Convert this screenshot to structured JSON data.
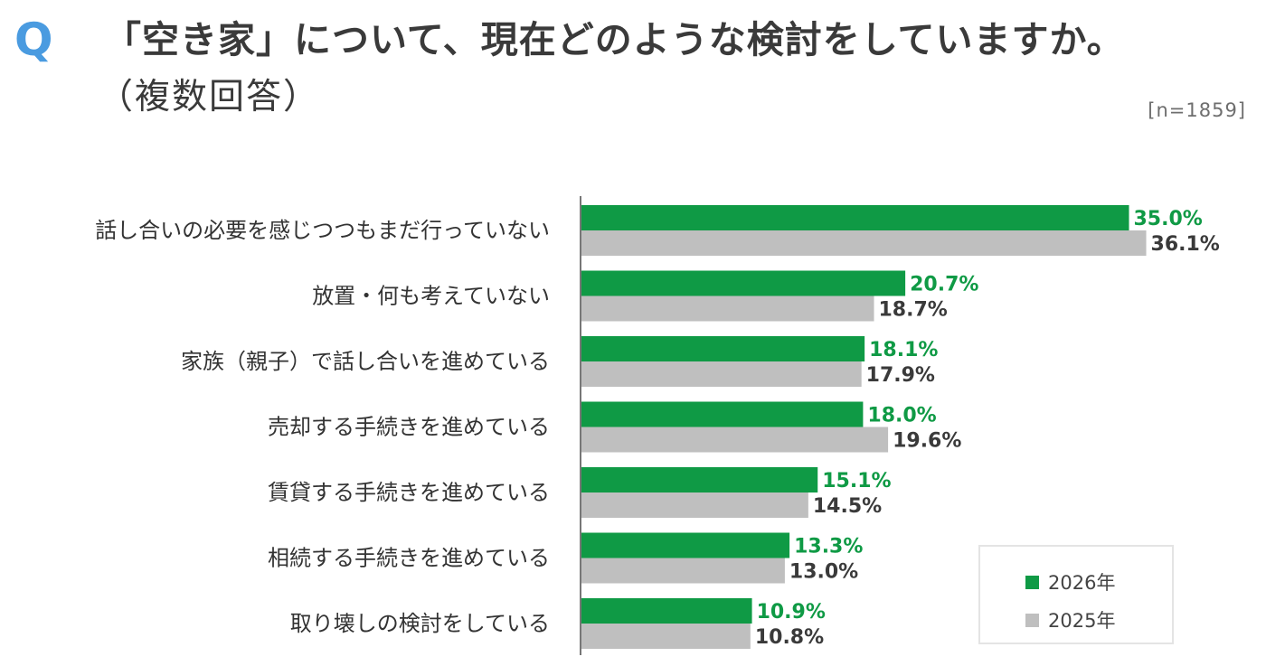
{
  "header": {
    "q_mark": "Q",
    "title": "「空き家」について、現在どのような検討をしていますか。",
    "subtitle": "（複数回答）",
    "sample_size": "[n=1859]"
  },
  "colors": {
    "q_mark": "#4a9be0",
    "series_2026": "#0f9a45",
    "series_2025": "#bfbfbf",
    "label_2026": "#0f9a45",
    "label_2025": "#3a3a3a",
    "axis": "#777777"
  },
  "chart_data": {
    "type": "bar",
    "orientation": "horizontal",
    "categories": [
      "話し合いの必要を感じつつもまだ行っていない",
      "放置・何も考えていない",
      "家族（親子）で話し合いを進めている",
      "売却する手続きを進めている",
      "賃貸する手続きを進めている",
      "相続する手続きを進めている",
      "取り壊しの検討をしている"
    ],
    "series": [
      {
        "name": "2026年",
        "values": [
          35.0,
          20.7,
          18.1,
          18.0,
          15.1,
          13.3,
          10.9
        ],
        "labels": [
          "35.0%",
          "20.7%",
          "18.1%",
          "18.0%",
          "15.1%",
          "13.3%",
          "10.9%"
        ]
      },
      {
        "name": "2025年",
        "values": [
          36.1,
          18.7,
          17.9,
          19.6,
          14.5,
          13.0,
          10.8
        ],
        "labels": [
          "36.1%",
          "18.7%",
          "17.9%",
          "19.6%",
          "14.5%",
          "13.0%",
          "10.8%"
        ]
      }
    ],
    "xlim": [
      0,
      40
    ],
    "grid": false,
    "legend_position": "bottom-right"
  },
  "legend": {
    "items": [
      "2026年",
      "2025年"
    ]
  }
}
